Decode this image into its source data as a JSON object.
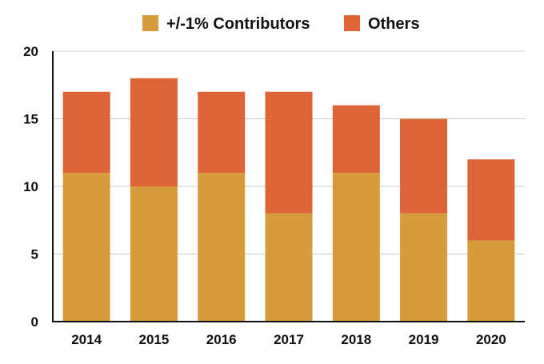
{
  "chart_data": {
    "type": "bar",
    "stacked": true,
    "title": "",
    "xlabel": "",
    "ylabel": "",
    "categories": [
      "2014",
      "2015",
      "2016",
      "2017",
      "2018",
      "2019",
      "2020"
    ],
    "series": [
      {
        "name": "+/-1% Contributors",
        "values": [
          11,
          10,
          11,
          8,
          11,
          8,
          6
        ],
        "color": "#D69B3A"
      },
      {
        "name": "Others",
        "values": [
          6,
          8,
          6,
          9,
          5,
          7,
          6
        ],
        "color": "#DC6437"
      }
    ],
    "ylim": [
      0,
      20
    ],
    "yticks": [
      "0",
      "5",
      "10",
      "15",
      "20"
    ],
    "grid": true,
    "legend": "top-center",
    "colors": {
      "grid": "#cccccc",
      "axis": "#111111"
    }
  }
}
